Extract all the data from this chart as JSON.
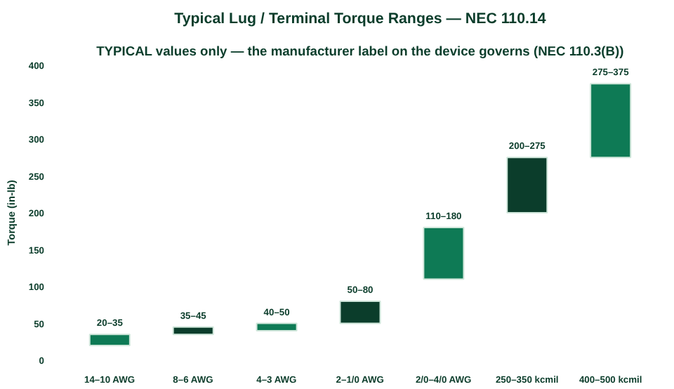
{
  "chart_data": {
    "type": "bar",
    "title": "Typical Lug / Terminal Torque Ranges — NEC 110.14",
    "subtitle": "TYPICAL values only — the manufacturer label on the device governs (NEC 110.3(B))",
    "ylabel": "Torque (in-lb)",
    "categories": [
      "14–10 AWG",
      "8–6 AWG",
      "4–3 AWG",
      "2–1/0 AWG",
      "2/0–4/0 AWG",
      "250–350 kcmil",
      "400–500 kcmil"
    ],
    "base": [
      20,
      35,
      40,
      50,
      110,
      200,
      275
    ],
    "values": [
      15,
      10,
      10,
      30,
      70,
      75,
      100
    ],
    "value_labels": [
      "20–35",
      "35–45",
      "40–50",
      "50–80",
      "110–180",
      "200–275",
      "275–375"
    ],
    "colors": [
      "#0e7a55",
      "#0b3d2b",
      "#0e7a55",
      "#0b3d2b",
      "#0e7a55",
      "#0b3d2b",
      "#0e7a55"
    ],
    "ylim": [
      0,
      400
    ],
    "yticks": [
      0,
      50,
      100,
      150,
      200,
      250,
      300,
      350,
      400
    ],
    "grid": false
  }
}
